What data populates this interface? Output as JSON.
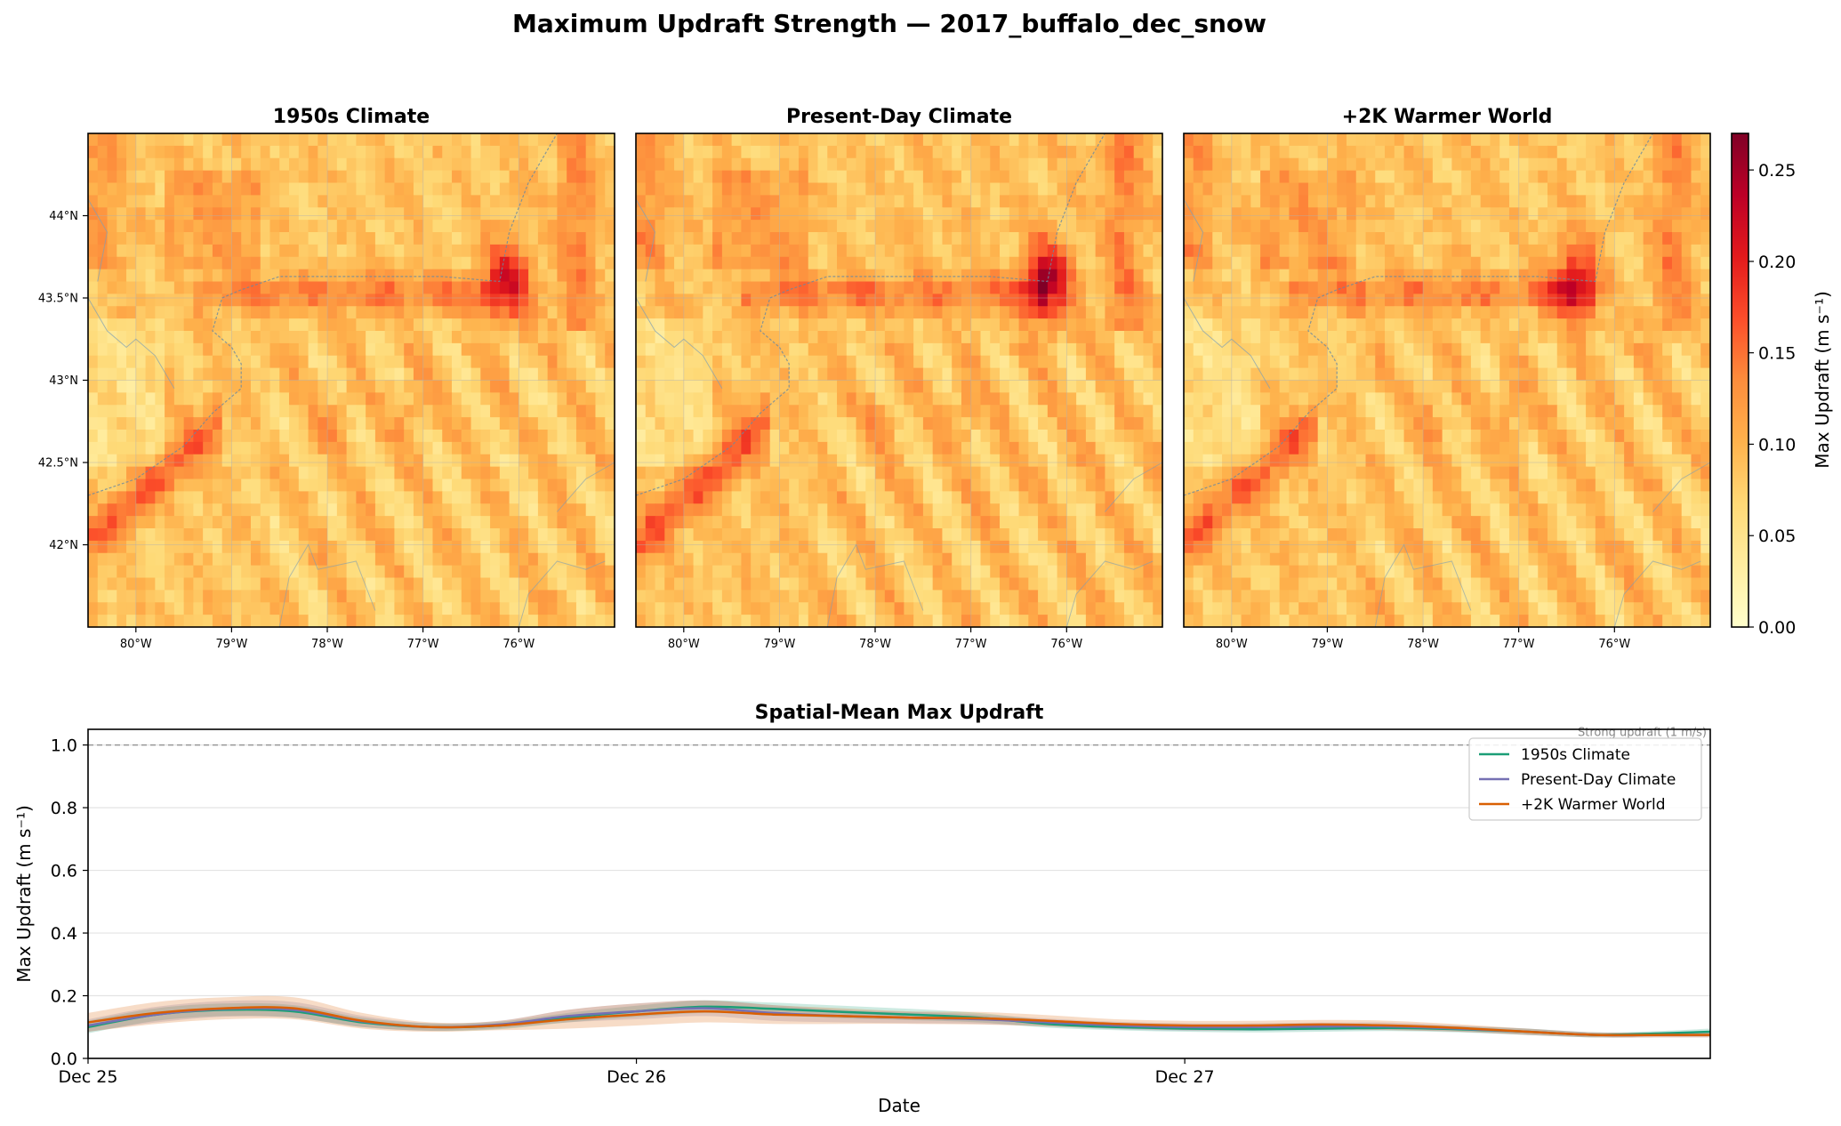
{
  "figure_title": "Maximum Updraft Strength — 2017_buffalo_dec_snow",
  "chart_data": [
    {
      "type": "heatmap",
      "title": "1950s Climate",
      "x_ticks": [
        "80°W",
        "79°W",
        "78°W",
        "77°W",
        "76°W"
      ],
      "y_ticks": [
        "44°N",
        "43.5°N",
        "43°N",
        "42.5°N",
        "42°N"
      ],
      "xlim": [
        -80.5,
        -75.0
      ],
      "ylim": [
        41.5,
        44.5
      ],
      "intensity": 1.0,
      "peak": [
        -76.1,
        43.6,
        0.25
      ]
    },
    {
      "type": "heatmap",
      "title": "Present-Day Climate",
      "x_ticks": [
        "80°W",
        "79°W",
        "78°W",
        "77°W",
        "76°W"
      ],
      "xlim": [
        -80.5,
        -75.0
      ],
      "ylim": [
        41.5,
        44.5
      ],
      "intensity": 1.03,
      "peak": [
        -76.2,
        43.6,
        0.27
      ]
    },
    {
      "type": "heatmap",
      "title": "+2K Warmer World",
      "x_ticks": [
        "80°W",
        "79°W",
        "78°W",
        "77°W",
        "76°W"
      ],
      "xlim": [
        -80.5,
        -75.0
      ],
      "ylim": [
        41.5,
        44.5
      ],
      "intensity": 1.0,
      "peak": [
        -76.4,
        43.6,
        0.24
      ]
    },
    {
      "type": "colorbar",
      "label": "Max Updraft (m s⁻¹)",
      "range": [
        0,
        0.27
      ],
      "ticks": [
        "0.00",
        "0.05",
        "0.10",
        "0.15",
        "0.20",
        "0.25"
      ],
      "colormap": [
        "#ffffcc",
        "#ffeda0",
        "#fed976",
        "#feb24c",
        "#fd8d3c",
        "#fc4e2a",
        "#e31a1c",
        "#bd0026",
        "#800026"
      ]
    },
    {
      "type": "line",
      "title": "Spatial-Mean Max Updraft",
      "xlabel": "Date",
      "ylabel": "Max Updraft (m s⁻¹)",
      "x_tick_labels": [
        "Dec 25",
        "Dec 26",
        "Dec 27"
      ],
      "y_tick_labels": [
        "0.0",
        "0.2",
        "0.4",
        "0.6",
        "0.8",
        "1.0"
      ],
      "xlim_hours": [
        0,
        71
      ],
      "ylim": [
        0,
        1.05
      ],
      "grid": "horizontal",
      "reference_line": {
        "value": 1.0,
        "label": "Strong updraft (1 m/s)"
      },
      "legend_position": "upper-right",
      "x_hours": [
        0,
        3,
        6,
        9,
        12,
        15,
        18,
        21,
        24,
        27,
        30,
        33,
        36,
        39,
        42,
        45,
        48,
        51,
        54,
        57,
        60,
        63,
        66,
        69,
        71
      ],
      "series": [
        {
          "name": "1950s Climate",
          "color": "#1b9e77",
          "values": [
            0.1,
            0.14,
            0.155,
            0.15,
            0.115,
            0.1,
            0.105,
            0.13,
            0.15,
            0.165,
            0.158,
            0.148,
            0.14,
            0.13,
            0.11,
            0.1,
            0.095,
            0.093,
            0.095,
            0.097,
            0.093,
            0.085,
            0.075,
            0.08,
            0.085
          ],
          "spread": [
            0.02,
            0.02,
            0.02,
            0.02,
            0.015,
            0.012,
            0.012,
            0.015,
            0.018,
            0.02,
            0.02,
            0.02,
            0.018,
            0.015,
            0.012,
            0.01,
            0.01,
            0.01,
            0.01,
            0.01,
            0.01,
            0.01,
            0.008,
            0.008,
            0.01
          ]
        },
        {
          "name": "Present-Day Climate",
          "color": "#7570b3",
          "values": [
            0.105,
            0.14,
            0.158,
            0.155,
            0.118,
            0.1,
            0.108,
            0.135,
            0.15,
            0.16,
            0.145,
            0.135,
            0.13,
            0.125,
            0.115,
            0.105,
            0.1,
            0.1,
            0.102,
            0.102,
            0.095,
            0.085,
            0.075,
            0.075,
            0.075
          ],
          "spread": [
            0.02,
            0.025,
            0.025,
            0.025,
            0.018,
            0.012,
            0.012,
            0.02,
            0.025,
            0.025,
            0.025,
            0.02,
            0.018,
            0.015,
            0.012,
            0.012,
            0.012,
            0.012,
            0.012,
            0.012,
            0.01,
            0.01,
            0.008,
            0.008,
            0.008
          ]
        },
        {
          "name": "+2K Warmer World",
          "color": "#d95f02",
          "values": [
            0.115,
            0.145,
            0.16,
            0.16,
            0.12,
            0.1,
            0.105,
            0.125,
            0.14,
            0.15,
            0.14,
            0.135,
            0.13,
            0.128,
            0.12,
            0.11,
            0.105,
            0.105,
            0.108,
            0.105,
            0.097,
            0.085,
            0.075,
            0.075,
            0.075
          ],
          "spread": [
            0.03,
            0.035,
            0.035,
            0.035,
            0.025,
            0.015,
            0.015,
            0.03,
            0.035,
            0.035,
            0.03,
            0.025,
            0.02,
            0.02,
            0.018,
            0.015,
            0.015,
            0.015,
            0.015,
            0.015,
            0.012,
            0.01,
            0.008,
            0.008,
            0.008
          ]
        }
      ]
    }
  ]
}
